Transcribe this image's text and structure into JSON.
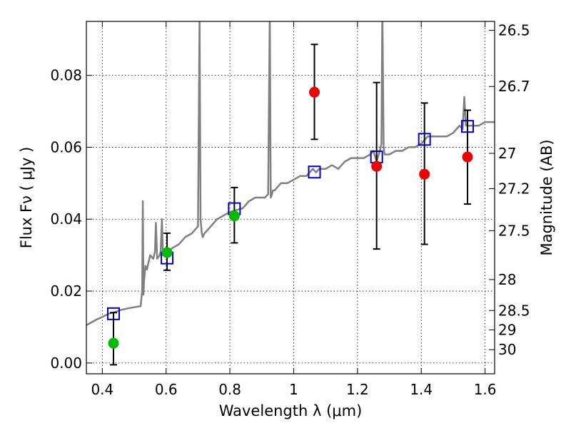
{
  "chart_data": {
    "type": "scatter",
    "xlabel": "Wavelength  λ (μm)",
    "ylabel_left": "Flux  Fν  ( μJy )",
    "ylabel_right": "Magnitude (AB)",
    "xlim": [
      0.35,
      1.63
    ],
    "ylim": [
      -0.003,
      0.095
    ],
    "x_ticks": [
      0.4,
      0.6,
      0.8,
      1.0,
      1.2,
      1.4,
      1.6
    ],
    "x_tick_labels": [
      "0.4",
      "0.6",
      "0.8",
      "1",
      "1.2",
      "1.4",
      "1.6"
    ],
    "y_ticks": [
      0.0,
      0.02,
      0.04,
      0.06,
      0.08
    ],
    "y_tick_labels": [
      "0.00",
      "0.02",
      "0.04",
      "0.06",
      "0.08"
    ],
    "right_axis_ticks": [
      {
        "label": "26.5",
        "flux": 0.0925
      },
      {
        "label": "26.7",
        "flux": 0.0769
      },
      {
        "label": "27",
        "flux": 0.0583
      },
      {
        "label": "27.2",
        "flux": 0.0485
      },
      {
        "label": "27.5",
        "flux": 0.0368
      },
      {
        "label": "28",
        "flux": 0.0232
      },
      {
        "label": "28.5",
        "flux": 0.0146
      },
      {
        "label": "29",
        "flux": 0.0092
      },
      {
        "label": "30",
        "flux": 0.0037
      }
    ],
    "grid": true,
    "series": [
      {
        "kind": "points_with_errors",
        "color": "#00bb00",
        "x": [
          0.435,
          0.603,
          0.814
        ],
        "y": [
          0.0055,
          0.0307,
          0.0409
        ],
        "yerr_low": [
          0.006,
          0.0049,
          0.0075
        ],
        "yerr_high": [
          0.0085,
          0.0054,
          0.0079
        ]
      },
      {
        "kind": "points_with_errors",
        "color": "#ee0000",
        "x": [
          1.065,
          1.26,
          1.41,
          1.545
        ],
        "y": [
          0.0753,
          0.0547,
          0.0525,
          0.0573
        ],
        "yerr_low": [
          0.0131,
          0.023,
          0.0195,
          0.0131
        ],
        "yerr_high": [
          0.0133,
          0.0233,
          0.0198,
          0.013
        ]
      },
      {
        "kind": "model_boxes",
        "color": "#0000cc",
        "x": [
          0.435,
          0.603,
          0.814,
          1.065,
          1.26,
          1.41,
          1.545
        ],
        "y": [
          0.0137,
          0.0292,
          0.0429,
          0.0531,
          0.0573,
          0.0622,
          0.0658
        ]
      },
      {
        "kind": "model_spectrum",
        "color": "#808080",
        "x": [
          0.35,
          0.36,
          0.38,
          0.4,
          0.42,
          0.44,
          0.46,
          0.48,
          0.5,
          0.52,
          0.525,
          0.527,
          0.529,
          0.531,
          0.535,
          0.54,
          0.545,
          0.55,
          0.56,
          0.565,
          0.568,
          0.572,
          0.58,
          0.583,
          0.587,
          0.59,
          0.6,
          0.62,
          0.64,
          0.66,
          0.68,
          0.7,
          0.705,
          0.708,
          0.712,
          0.715,
          0.72,
          0.74,
          0.76,
          0.78,
          0.8,
          0.82,
          0.84,
          0.86,
          0.88,
          0.9,
          0.91,
          0.92,
          0.925,
          0.928,
          0.932,
          0.935,
          0.94,
          0.95,
          0.96,
          0.98,
          1.0,
          1.02,
          1.04,
          1.06,
          1.07,
          1.08,
          1.1,
          1.12,
          1.14,
          1.16,
          1.18,
          1.2,
          1.22,
          1.24,
          1.25,
          1.26,
          1.27,
          1.275,
          1.278,
          1.282,
          1.285,
          1.29,
          1.3,
          1.32,
          1.34,
          1.36,
          1.38,
          1.4,
          1.42,
          1.44,
          1.46,
          1.48,
          1.5,
          1.52,
          1.53,
          1.535,
          1.54,
          1.55,
          1.56,
          1.58,
          1.6,
          1.63
        ],
        "y": [
          0.0105,
          0.011,
          0.012,
          0.0128,
          0.0137,
          0.0142,
          0.0148,
          0.0152,
          0.0155,
          0.0158,
          0.02,
          0.045,
          0.019,
          0.023,
          0.027,
          0.026,
          0.028,
          0.03,
          0.029,
          0.031,
          0.039,
          0.029,
          0.03,
          0.031,
          0.04,
          0.03,
          0.0307,
          0.032,
          0.033,
          0.035,
          0.036,
          0.038,
          0.097,
          0.04,
          0.036,
          0.035,
          0.036,
          0.038,
          0.04,
          0.041,
          0.042,
          0.0425,
          0.043,
          0.045,
          0.046,
          0.046,
          0.046,
          0.047,
          0.098,
          0.046,
          0.047,
          0.048,
          0.048,
          0.049,
          0.05,
          0.05,
          0.051,
          0.052,
          0.052,
          0.054,
          0.053,
          0.054,
          0.054,
          0.055,
          0.054,
          0.056,
          0.057,
          0.057,
          0.057,
          0.058,
          0.059,
          0.056,
          0.059,
          0.061,
          0.099,
          0.06,
          0.058,
          0.058,
          0.058,
          0.059,
          0.059,
          0.06,
          0.06,
          0.061,
          0.063,
          0.063,
          0.063,
          0.063,
          0.064,
          0.066,
          0.065,
          0.074,
          0.066,
          0.066,
          0.066,
          0.066,
          0.067,
          0.067
        ]
      }
    ]
  }
}
